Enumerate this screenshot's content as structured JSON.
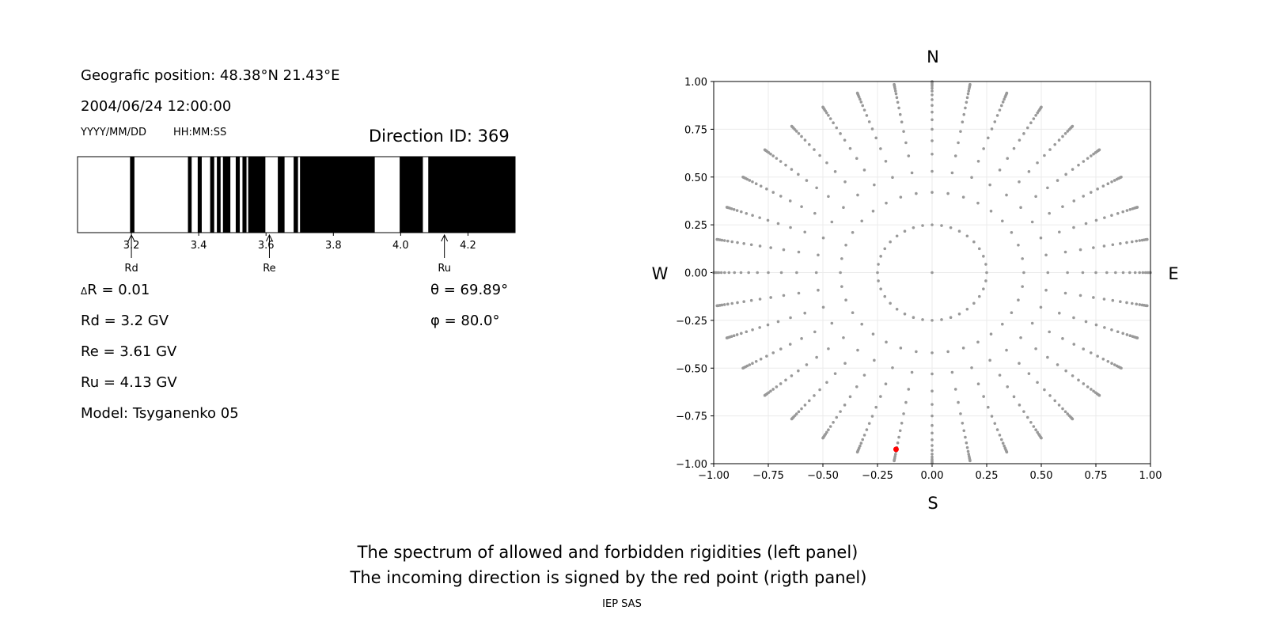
{
  "left_panel": {
    "position": "Geografic position: 48.38°N 21.43°E",
    "datetime": "2004/06/24 12:00:00",
    "date_format": "YYYY/MM/DD",
    "time_format": "HH:MM:SS",
    "direction_id": "Direction ID: 369",
    "delta_r": "R = 0.01",
    "delta_symbol": "Δ",
    "rd": "Rd = 3.2 GV",
    "re": "Re = 3.61 GV",
    "ru": "Ru = 4.13 GV",
    "model": "Model: Tsyganenko 05",
    "theta": "θ = 69.89°",
    "phi": "φ = 80.0°"
  },
  "captions": {
    "line1": "The spectrum of allowed and forbidden rigidities (left panel)",
    "line2": "The incoming direction is signed by the red point (rigth panel)",
    "credit": "IEP SAS"
  },
  "chart_data": [
    {
      "type": "bar",
      "name": "rigidity-spectrum",
      "xlim": [
        3.04,
        4.34
      ],
      "xticks": [
        "3.2",
        "3.4",
        "3.6",
        "3.8",
        "4.0",
        "4.2"
      ],
      "forbidden_intervals": [
        [
          3.196,
          3.209
        ],
        [
          3.368,
          3.379
        ],
        [
          3.397,
          3.409
        ],
        [
          3.434,
          3.446
        ],
        [
          3.454,
          3.465
        ],
        [
          3.472,
          3.494
        ],
        [
          3.51,
          3.522
        ],
        [
          3.53,
          3.542
        ],
        [
          3.547,
          3.598
        ],
        [
          3.635,
          3.655
        ],
        [
          3.682,
          3.695
        ],
        [
          3.701,
          3.923
        ],
        [
          3.997,
          4.066
        ],
        [
          4.082,
          4.34
        ]
      ],
      "annotations": [
        {
          "label": "Rd",
          "x": 3.2
        },
        {
          "label": "Re",
          "x": 3.61
        },
        {
          "label": "Ru",
          "x": 4.13
        }
      ],
      "colors": {
        "forbidden": "#000000",
        "allowed": "#ffffff"
      }
    },
    {
      "type": "scatter",
      "name": "direction-map",
      "xlim": [
        -1,
        1
      ],
      "ylim": [
        -1,
        1
      ],
      "xticks": [
        "−1.00",
        "−0.75",
        "−0.50",
        "−0.25",
        "0.00",
        "0.25",
        "0.50",
        "0.75",
        "1.00"
      ],
      "yticks": [
        "−1.00",
        "−0.75",
        "−0.50",
        "−0.25",
        "0.00",
        "0.25",
        "0.50",
        "0.75",
        "1.00"
      ],
      "grid": true,
      "compass": {
        "north": "N",
        "south": "S",
        "west": "W",
        "east": "E"
      },
      "ray_azimuths_deg_step": 10,
      "ray_radii": [
        0.25,
        0.42,
        0.53,
        0.62,
        0.69,
        0.75,
        0.8,
        0.84,
        0.875,
        0.905,
        0.93,
        0.95,
        0.965,
        0.977,
        0.986,
        0.993,
        0.998,
        1.0
      ],
      "center_point": [
        0,
        0
      ],
      "highlight_point": {
        "x": -0.165,
        "y": -0.925
      },
      "colors": {
        "points": "#999999",
        "highlight": "#ff0000"
      }
    }
  ]
}
